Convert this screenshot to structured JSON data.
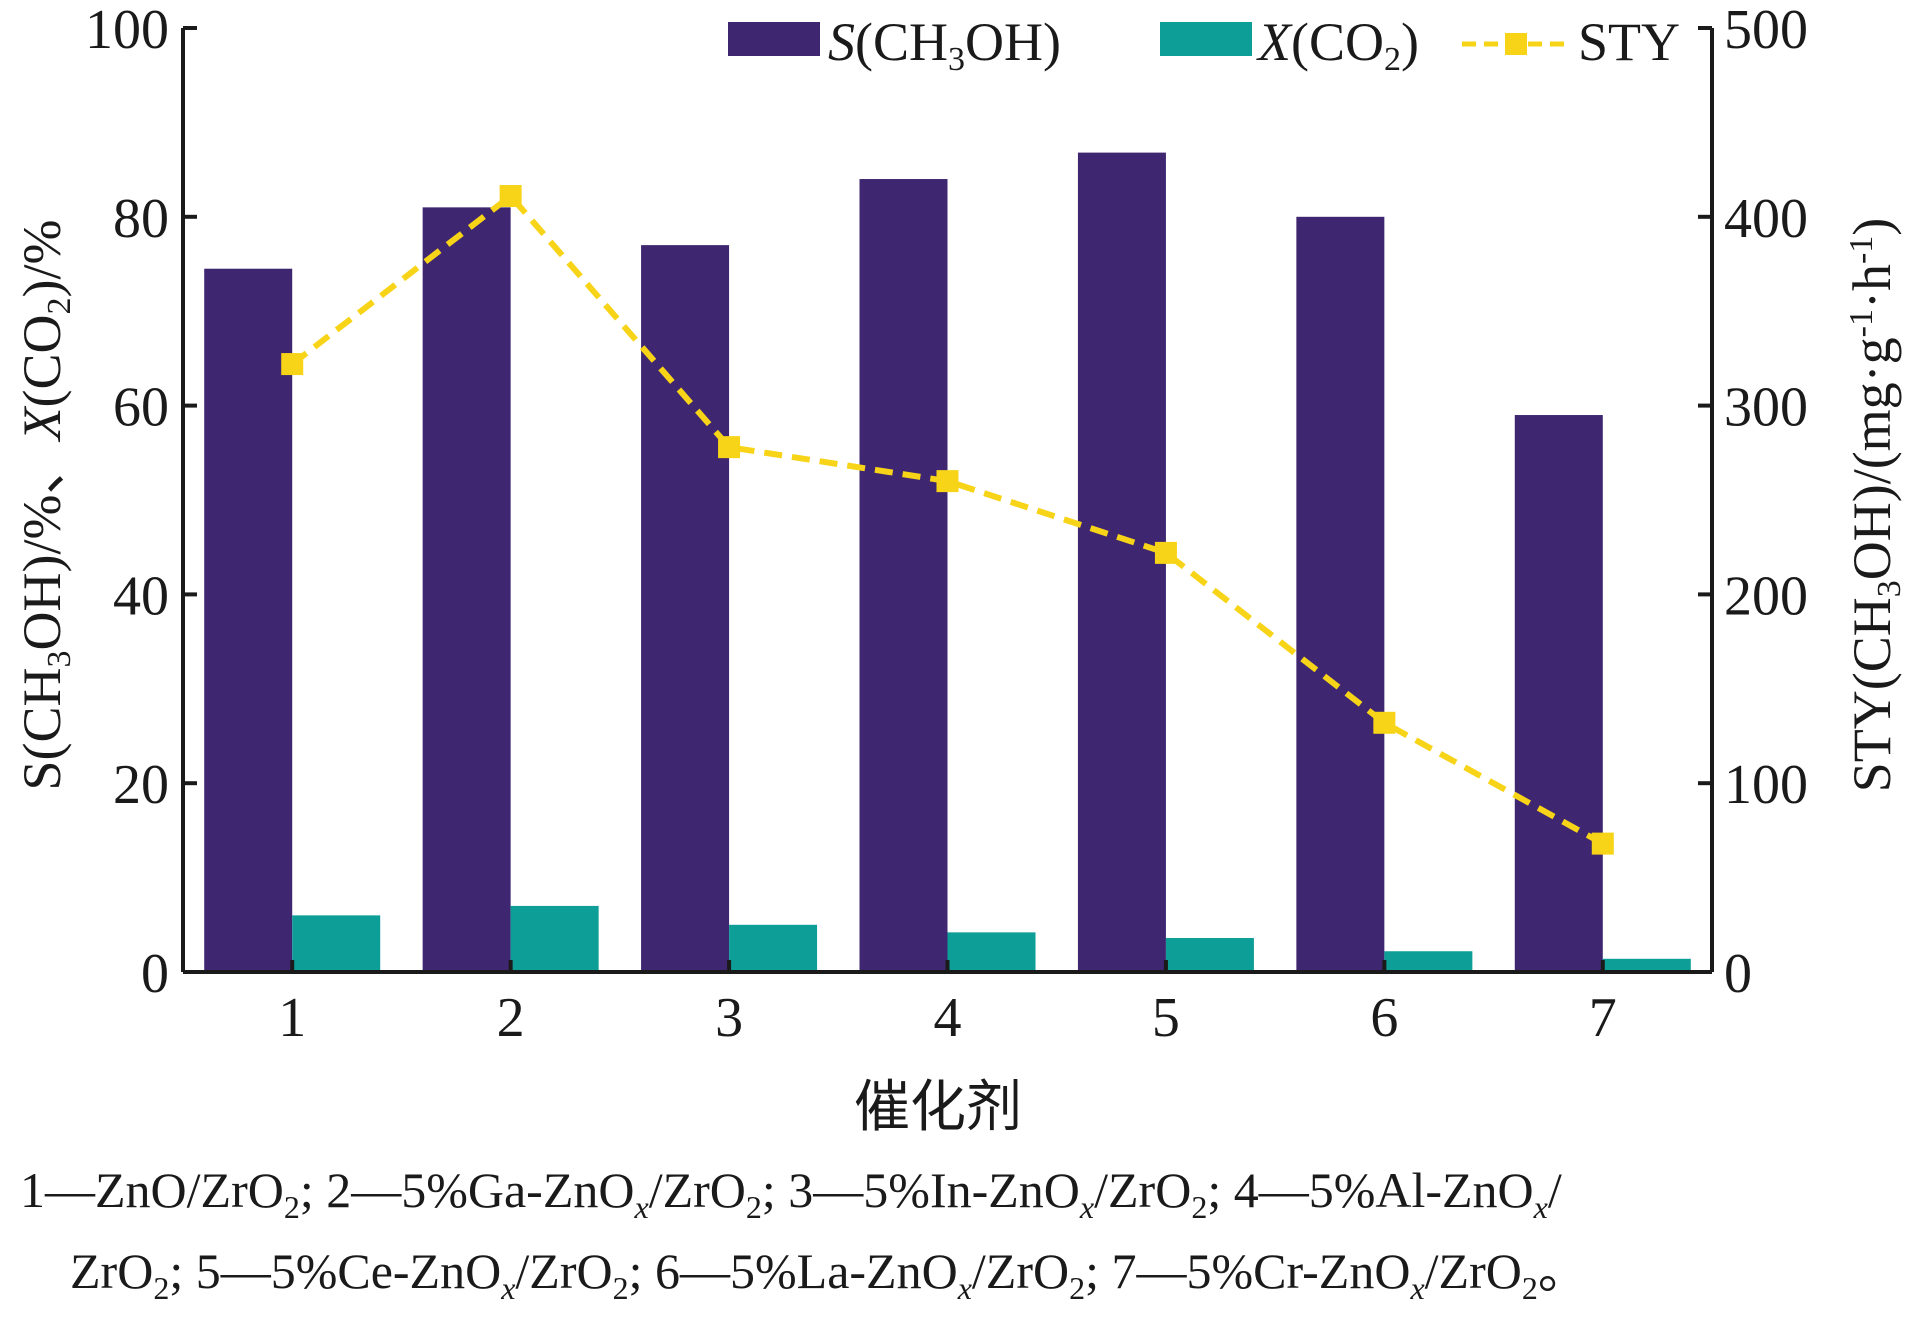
{
  "chart_data": {
    "type": "bar",
    "categories": [
      "1",
      "2",
      "3",
      "4",
      "5",
      "6",
      "7"
    ],
    "series": [
      {
        "name": "S(CH3OH)",
        "axis": "left",
        "kind": "bar",
        "color": "#3f2670",
        "values": [
          74.5,
          81,
          77,
          84,
          86.8,
          80,
          59
        ]
      },
      {
        "name": "X(CO2)",
        "axis": "left",
        "kind": "bar",
        "color": "#0e9e98",
        "values": [
          6,
          7,
          5,
          4.2,
          3.6,
          2.2,
          1.4
        ]
      },
      {
        "name": "STY",
        "axis": "right",
        "kind": "line",
        "color": "#f7d417",
        "values": [
          322,
          411,
          278,
          260,
          222,
          132,
          68
        ]
      }
    ],
    "xlabel": "催化剂",
    "ylabel_left": "S(CH3OH)/%、X(CO2)/%",
    "ylabel_right": "STY(CH3OH)/(mg·g-1·h-1)",
    "ylim_left": [
      0,
      100
    ],
    "yticks_left": [
      "0",
      "20",
      "40",
      "60",
      "80",
      "100"
    ],
    "ylim_right": [
      0,
      500
    ],
    "yticks_right": [
      "0",
      "100",
      "200",
      "300",
      "400",
      "500"
    ],
    "grid": false,
    "legend_placement": "top-right"
  },
  "legend": {
    "s_label": "S(CH₃OH)",
    "x_label": "X(CO₂)",
    "sty_label": "STY"
  },
  "caption": {
    "line1": "1—ZnO/ZrO₂; 2—5%Ga-ZnOₓ/ZrO₂; 3—5%In-ZnOₓ/ZrO₂; 4—5%Al-ZnOₓ/",
    "line2": "ZrO₂; 5—5%Ce-ZnOₓ/ZrO₂; 6—5%La-ZnOₓ/ZrO₂; 7—5%Cr-ZnOₓ/ZrO₂。"
  }
}
